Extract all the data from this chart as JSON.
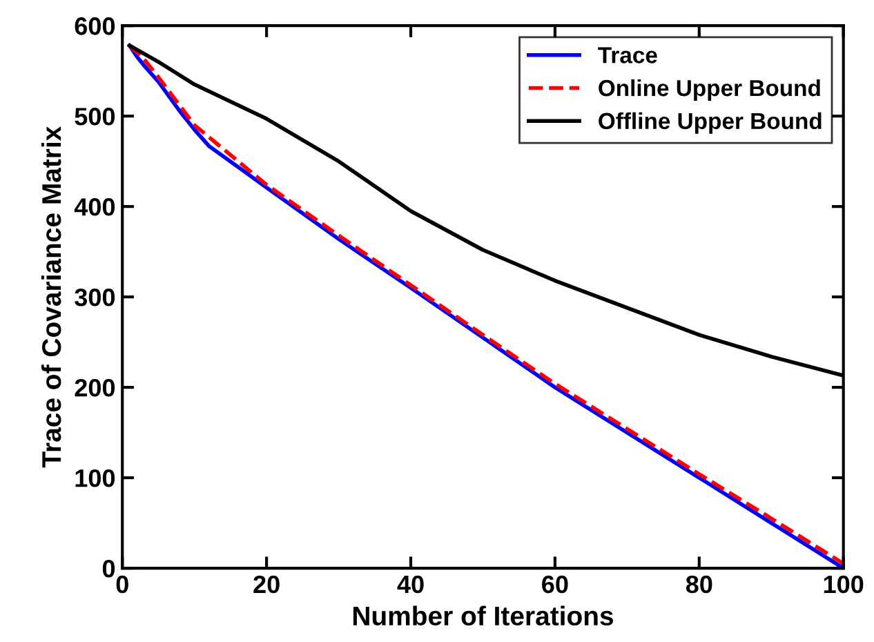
{
  "chart_data": {
    "type": "line",
    "xlabel": "Number of Iterations",
    "ylabel": "Trace of Covariance Matrix",
    "xlim": [
      0,
      100
    ],
    "ylim": [
      0,
      600
    ],
    "xticks": [
      0,
      20,
      40,
      60,
      80,
      100
    ],
    "yticks": [
      0,
      100,
      200,
      300,
      400,
      500,
      600
    ],
    "grid": false,
    "legend": "top right",
    "series": [
      {
        "name": "Trace",
        "color": "#0000ff",
        "line_style": "solid",
        "x": [
          1,
          2,
          3,
          5,
          8,
          10,
          12,
          20,
          30,
          40,
          50,
          60,
          70,
          80,
          90,
          100
        ],
        "values": [
          578,
          566,
          556,
          538,
          505,
          485,
          467,
          421,
          364,
          310,
          255,
          200,
          150,
          100,
          50,
          0
        ]
      },
      {
        "name": "Online Upper Bound",
        "color": "#ff0000",
        "line_style": "dashed",
        "x": [
          1,
          3,
          5,
          10,
          20,
          30,
          40,
          50,
          60,
          70,
          80,
          90,
          100
        ],
        "values": [
          578,
          563,
          543,
          490,
          424,
          368,
          313,
          258,
          204,
          154,
          104,
          55,
          5
        ]
      },
      {
        "name": "Offline Upper Bound",
        "color": "#000000",
        "line_style": "solid",
        "x": [
          1,
          5,
          10,
          20,
          30,
          40,
          50,
          60,
          70,
          80,
          90,
          100
        ],
        "values": [
          578,
          560,
          535,
          497,
          450,
          395,
          352,
          318,
          288,
          258,
          234,
          213
        ]
      }
    ]
  }
}
